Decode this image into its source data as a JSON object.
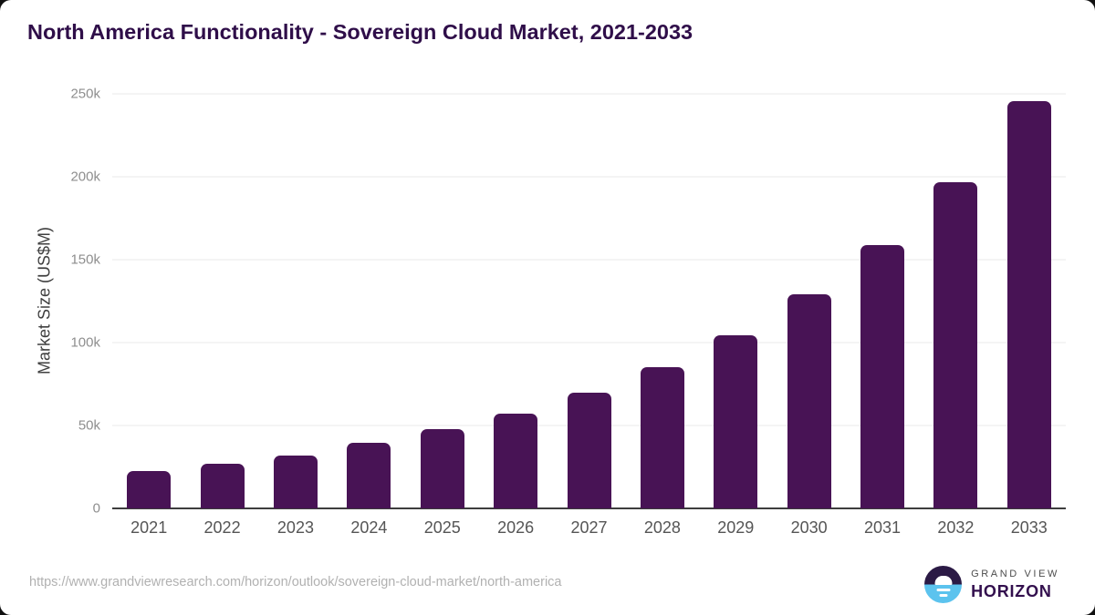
{
  "title": "North America Functionality - Sovereign Cloud Market, 2021-2033",
  "chart_data": {
    "type": "bar",
    "title": "North America Functionality - Sovereign Cloud Market, 2021-2033",
    "categories": [
      "2021",
      "2022",
      "2023",
      "2024",
      "2025",
      "2026",
      "2027",
      "2028",
      "2029",
      "2030",
      "2031",
      "2032",
      "2033"
    ],
    "values": [
      22500,
      27000,
      32000,
      39600,
      47800,
      57100,
      69900,
      85300,
      104500,
      128900,
      158600,
      196700,
      245700
    ],
    "xlabel": "",
    "ylabel": "Market Size (US$M)",
    "ylim": [
      0,
      250000
    ],
    "yticks": [
      {
        "value": 0,
        "label": "0"
      },
      {
        "value": 50000,
        "label": "50k"
      },
      {
        "value": 100000,
        "label": "100k"
      },
      {
        "value": 150000,
        "label": "150k"
      },
      {
        "value": 200000,
        "label": "200k"
      },
      {
        "value": 250000,
        "label": "250k"
      }
    ],
    "grid": true,
    "legend": false,
    "bar_color": "#481355"
  },
  "colors": {
    "bar": "#481355",
    "title_text": "#2f0e49",
    "gridline": "#e8e8e8",
    "axis_line": "#3d3d3d",
    "logo_dark": "#2b1a45",
    "logo_blue": "#5cc3ee"
  },
  "footer": {
    "source_url": "https://www.grandviewresearch.com/horizon/outlook/sovereign-cloud-market/north-america",
    "logo": {
      "top_text": "GRAND VIEW",
      "bottom_text": "HORIZON"
    }
  }
}
